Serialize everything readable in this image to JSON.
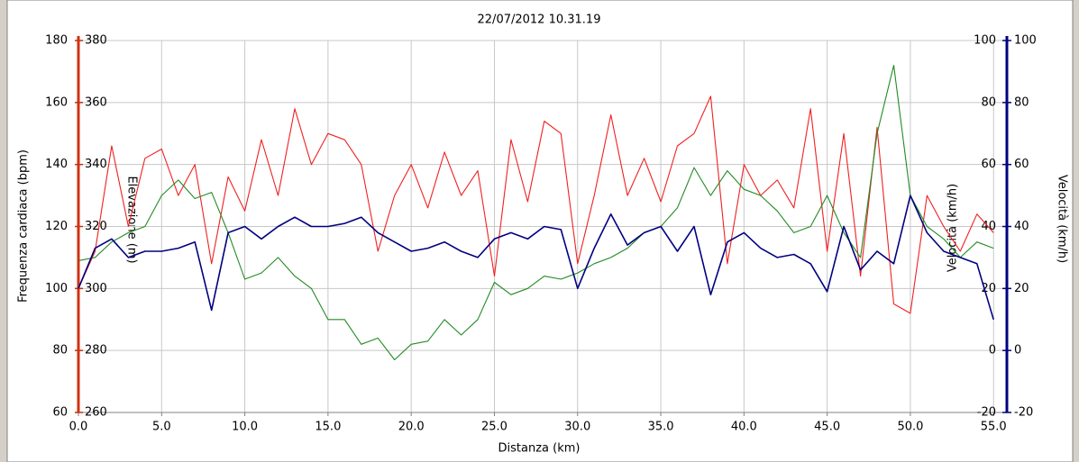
{
  "chart_data": {
    "type": "line",
    "title": "22/07/2012 10.31.19",
    "x_label": "Distanza (km)",
    "y_label": "Frequenza cardiaca (bpm)",
    "y3_label": "Elevazione (m)",
    "y2_label": "Velocità (km/h)",
    "x": [
      0,
      1,
      2,
      3,
      4,
      5,
      6,
      7,
      8,
      9,
      10,
      11,
      12,
      13,
      14,
      15,
      16,
      17,
      18,
      19,
      20,
      21,
      22,
      23,
      24,
      25,
      26,
      27,
      28,
      29,
      30,
      31,
      32,
      33,
      34,
      35,
      36,
      37,
      38,
      39,
      40,
      41,
      42,
      43,
      44,
      45,
      46,
      47,
      48,
      49,
      50,
      51,
      52,
      53,
      54,
      55
    ],
    "xlim": [
      0,
      55.8
    ],
    "xticks": [
      {
        "value": 0,
        "label": "0.0"
      },
      {
        "value": 5,
        "label": "5.0"
      },
      {
        "value": 10,
        "label": "10.0"
      },
      {
        "value": 15,
        "label": "15.0"
      },
      {
        "value": 20,
        "label": "20.0"
      },
      {
        "value": 25,
        "label": "25.0"
      },
      {
        "value": 30,
        "label": "30.0"
      },
      {
        "value": 35,
        "label": "35.0"
      },
      {
        "value": 40,
        "label": "40.0"
      },
      {
        "value": 45,
        "label": "45.0"
      },
      {
        "value": 50,
        "label": "50.0"
      },
      {
        "value": 55,
        "label": "55.0"
      }
    ],
    "ylim": [
      60,
      180
    ],
    "yticks": [
      60,
      80,
      100,
      120,
      140,
      160,
      180
    ],
    "y3lim": [
      260,
      380
    ],
    "y3ticks": [
      260,
      280,
      300,
      320,
      340,
      360,
      380
    ],
    "y2lim": [
      -20,
      100
    ],
    "y2ticks": [
      -20,
      0,
      20,
      40,
      60,
      80,
      100
    ],
    "grid": true,
    "series": [
      {
        "color": "#f02020",
        "axis": "y",
        "values": [
          100,
          112,
          146,
          120,
          142,
          145,
          130,
          140,
          108,
          136,
          125,
          148,
          130,
          158,
          140,
          150,
          148,
          140,
          112,
          130,
          140,
          126,
          144,
          130,
          138,
          104,
          148,
          128,
          154,
          150,
          108,
          130,
          156,
          130,
          142,
          128,
          146,
          150,
          162,
          108,
          140,
          130,
          135,
          126,
          158,
          112,
          150,
          104,
          152,
          95,
          92,
          130,
          120,
          112,
          124,
          118
        ]
      },
      {
        "color": "#228b22",
        "axis": "y3",
        "values": [
          309,
          310,
          315,
          318,
          320,
          330,
          335,
          329,
          331,
          318,
          303,
          305,
          310,
          304,
          300,
          290,
          290,
          282,
          284,
          277,
          282,
          283,
          290,
          285,
          290,
          302,
          298,
          300,
          304,
          303,
          305,
          308,
          310,
          313,
          318,
          320,
          326,
          339,
          330,
          338,
          332,
          330,
          325,
          318,
          320,
          330,
          318,
          310,
          350,
          372,
          330,
          320,
          316,
          310,
          315,
          313
        ]
      },
      {
        "color": "#000080",
        "axis": "y2",
        "values": [
          20,
          33,
          36,
          30,
          32,
          32,
          33,
          35,
          13,
          38,
          40,
          36,
          40,
          43,
          40,
          40,
          41,
          43,
          38,
          35,
          32,
          33,
          35,
          32,
          30,
          36,
          38,
          36,
          40,
          39,
          20,
          33,
          44,
          34,
          38,
          40,
          32,
          40,
          18,
          35,
          38,
          33,
          30,
          31,
          28,
          19,
          40,
          26,
          32,
          28,
          50,
          38,
          32,
          30,
          28,
          10
        ]
      }
    ]
  }
}
